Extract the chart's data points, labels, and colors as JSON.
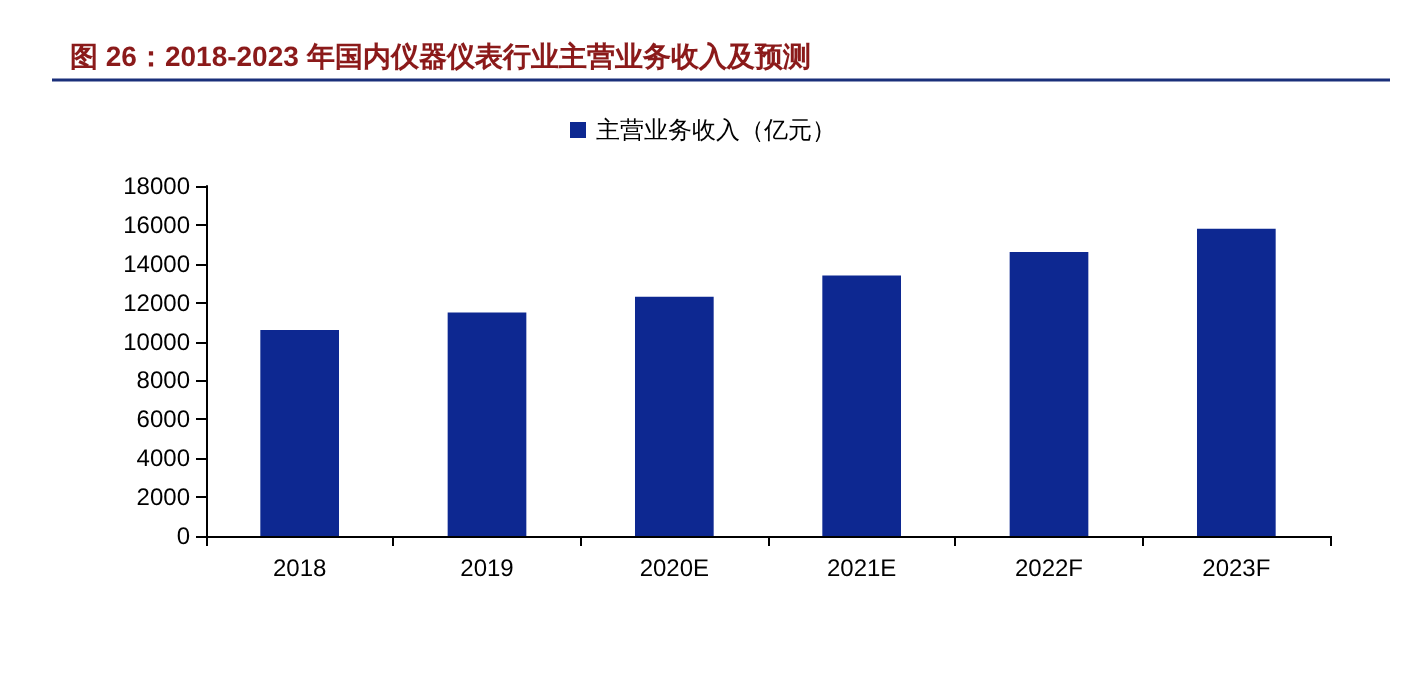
{
  "chart_data": {
    "type": "bar",
    "title": "图 26：2018-2023 年国内仪器仪表行业主营业务收入及预测",
    "categories": [
      "2018",
      "2019",
      "2020E",
      "2021E",
      "2022F",
      "2023F"
    ],
    "series": [
      {
        "name": "主营业务收入（亿元）",
        "color": "#0d2891",
        "values": [
          10600,
          11500,
          12300,
          13400,
          14600,
          15800
        ]
      }
    ],
    "ylim": [
      0,
      18000
    ],
    "yticks": [
      0,
      2000,
      4000,
      6000,
      8000,
      10000,
      12000,
      14000,
      16000,
      18000
    ],
    "grid": false,
    "legend": "top"
  }
}
